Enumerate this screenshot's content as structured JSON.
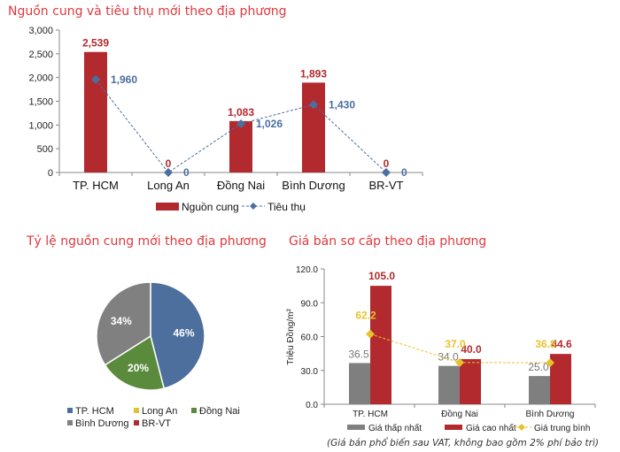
{
  "chart_data": [
    {
      "type": "bar",
      "title": "Nguồn cung và tiêu thụ mới theo địa phương",
      "categories": [
        "TP. HCM",
        "Long An",
        "Đồng Nai",
        "Bình Dương",
        "BR-VT"
      ],
      "ylim": [
        0,
        3000
      ],
      "yticks": [
        "0",
        "500",
        "1,000",
        "1,500",
        "2,000",
        "2,500",
        "3,000"
      ],
      "series": [
        {
          "name": "Nguồn cung",
          "kind": "bar",
          "color": "#b22a2e",
          "values": [
            2539,
            0,
            1083,
            1893,
            0
          ],
          "labels": [
            "2,539",
            "0",
            "1,083",
            "1,893",
            "0"
          ]
        },
        {
          "name": "Tiêu thụ",
          "kind": "line-dashed",
          "marker": "diamond",
          "color": "#4a6fa0",
          "values": [
            1960,
            0,
            1026,
            1430,
            0
          ],
          "labels": [
            "1,960",
            "0",
            "1,026",
            "1,430",
            "0"
          ]
        }
      ],
      "legend": "bottom"
    },
    {
      "type": "pie",
      "title": "Tỷ lệ nguồn cung mới theo địa phương",
      "slices": [
        {
          "name": "TP. HCM",
          "value": 46,
          "label": "46%",
          "color": "#4d6f9d"
        },
        {
          "name": "Long An",
          "value": 0,
          "label": "",
          "color": "#e6c12e"
        },
        {
          "name": "Đồng Nai",
          "value": 20,
          "label": "20%",
          "color": "#5a8a3c"
        },
        {
          "name": "Bình Dương",
          "value": 34,
          "label": "34%",
          "color": "#808080"
        },
        {
          "name": "BR-VT",
          "value": 0,
          "label": "",
          "color": "#b22a2e"
        }
      ],
      "legend": "bottom"
    },
    {
      "type": "bar",
      "title": "Giá bán sơ cấp theo địa phương",
      "ylabel": "Triệu Đồng/m²",
      "categories": [
        "TP. HCM",
        "Đồng Nai",
        "Bình Dương"
      ],
      "ylim": [
        0,
        120
      ],
      "yticks": [
        "0.0",
        "30.0",
        "60.0",
        "90.0",
        "120.0"
      ],
      "series": [
        {
          "name": "Giá thấp nhất",
          "kind": "bar",
          "color": "#7f7f7f",
          "values": [
            36.5,
            34.0,
            25.0
          ],
          "labels": [
            "36.5",
            "34.0",
            "25.0"
          ]
        },
        {
          "name": "Giá cao nhất",
          "kind": "bar",
          "color": "#b22a2e",
          "values": [
            105.0,
            40.0,
            44.6
          ],
          "labels": [
            "105.0",
            "40.0",
            "44.6"
          ]
        },
        {
          "name": "Giá trung bình",
          "kind": "line-dashed",
          "marker": "diamond",
          "color": "#e8c22e",
          "values": [
            62.2,
            37.0,
            36.8
          ],
          "labels": [
            "62.2",
            "37.0",
            "36.8"
          ]
        }
      ],
      "legend": "bottom",
      "note": "(Giá bán phổ biến sau VAT, không bao gồm 2% phí bảo trì)"
    }
  ]
}
